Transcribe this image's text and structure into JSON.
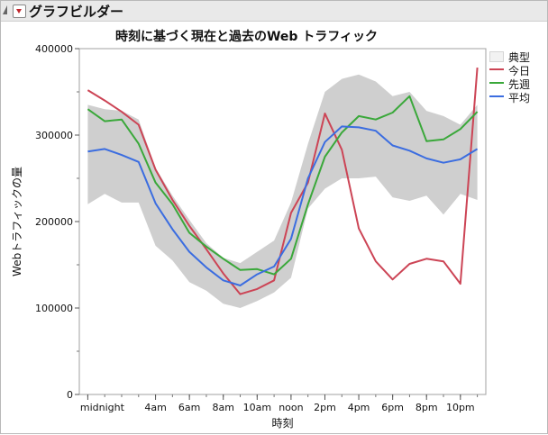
{
  "header": {
    "title": "グラフビルダー"
  },
  "legend": {
    "items": [
      {
        "label": "典型",
        "color": "#cccccc",
        "kind": "band"
      },
      {
        "label": "今日",
        "color": "#cc4455",
        "kind": "line"
      },
      {
        "label": "先週",
        "color": "#3aa83a",
        "kind": "line"
      },
      {
        "label": "平均",
        "color": "#3b6de0",
        "kind": "line"
      }
    ]
  },
  "chart_data": {
    "type": "line",
    "title": "時刻に基づく現在と過去のWeb トラフィック",
    "xlabel": "時刻",
    "ylabel": "Webトラフィックの量",
    "x_hours": [
      0,
      1,
      2,
      3,
      4,
      5,
      6,
      7,
      8,
      9,
      10,
      11,
      12,
      13,
      14,
      15,
      16,
      17,
      18,
      19,
      20,
      21,
      22,
      23
    ],
    "xlim": [
      -0.5,
      23.5
    ],
    "x_ticks": [
      {
        "hour": 0,
        "label": "midnight"
      },
      {
        "hour": 4,
        "label": "4am"
      },
      {
        "hour": 6,
        "label": "6am"
      },
      {
        "hour": 8,
        "label": "8am"
      },
      {
        "hour": 10,
        "label": "10am"
      },
      {
        "hour": 12,
        "label": "noon"
      },
      {
        "hour": 14,
        "label": "2pm"
      },
      {
        "hour": 16,
        "label": "4pm"
      },
      {
        "hour": 18,
        "label": "6pm"
      },
      {
        "hour": 20,
        "label": "8pm"
      },
      {
        "hour": 22,
        "label": "10pm"
      }
    ],
    "ylim": [
      0,
      400000
    ],
    "y_ticks": [
      0,
      100000,
      200000,
      300000,
      400000
    ],
    "y_tick_labels": [
      "0",
      "100000",
      "200000",
      "300000",
      "400000"
    ],
    "band": {
      "name": "典型",
      "upper": [
        335000,
        330000,
        328000,
        318000,
        262000,
        230000,
        202000,
        175000,
        158000,
        152000,
        165000,
        178000,
        222000,
        290000,
        350000,
        365000,
        370000,
        362000,
        345000,
        350000,
        328000,
        322000,
        312000,
        335000
      ],
      "lower": [
        220000,
        232000,
        222000,
        222000,
        172000,
        155000,
        130000,
        120000,
        105000,
        100000,
        108000,
        118000,
        135000,
        215000,
        238000,
        250000,
        250000,
        252000,
        228000,
        224000,
        230000,
        208000,
        232000,
        225000
      ]
    },
    "series": [
      {
        "name": "今日",
        "color": "#cc4455",
        "values": [
          352000,
          340000,
          327000,
          312000,
          260000,
          225000,
          195000,
          168000,
          140000,
          116000,
          122000,
          132000,
          210000,
          245000,
          325000,
          283000,
          192000,
          154000,
          133000,
          151000,
          157000,
          154000,
          128000,
          378000
        ]
      },
      {
        "name": "先週",
        "color": "#3aa83a",
        "values": [
          330000,
          316000,
          318000,
          290000,
          245000,
          220000,
          187000,
          171000,
          157000,
          144000,
          145000,
          139000,
          157000,
          220000,
          275000,
          303000,
          322000,
          318000,
          326000,
          345000,
          293000,
          295000,
          307000,
          327000
        ]
      },
      {
        "name": "平均",
        "color": "#3b6de0",
        "values": [
          281000,
          284000,
          277000,
          269000,
          221000,
          191000,
          165000,
          147000,
          132000,
          126000,
          139000,
          148000,
          180000,
          250000,
          292000,
          310000,
          309000,
          305000,
          288000,
          282000,
          273000,
          268000,
          272000,
          284000
        ]
      }
    ]
  }
}
